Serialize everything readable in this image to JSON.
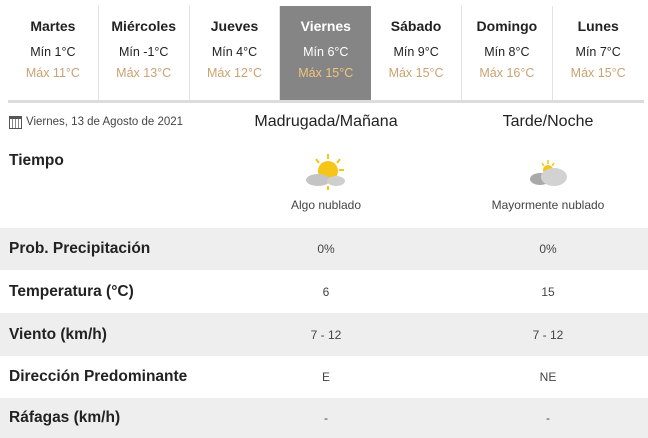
{
  "days": [
    {
      "name": "Martes",
      "min": "Mín 1°C",
      "max": "Máx 11°C",
      "selected": false
    },
    {
      "name": "Miércoles",
      "min": "Mín -1°C",
      "max": "Máx 13°C",
      "selected": false
    },
    {
      "name": "Jueves",
      "min": "Mín 4°C",
      "max": "Máx 12°C",
      "selected": false
    },
    {
      "name": "Viernes",
      "min": "Mín 6°C",
      "max": "Máx 15°C",
      "selected": true
    },
    {
      "name": "Sábado",
      "min": "Mín 9°C",
      "max": "Máx 15°C",
      "selected": false
    },
    {
      "name": "Domingo",
      "min": "Mín 8°C",
      "max": "Máx 16°C",
      "selected": false
    },
    {
      "name": "Lunes",
      "min": "Mín 7°C",
      "max": "Máx 15°C",
      "selected": false
    }
  ],
  "colors": {
    "selected_bg": "#858585",
    "max_temp": "#c9a272",
    "alt_row": "#eeeeee"
  },
  "detail": {
    "date": "Viernes, 13 de Agosto de 2021",
    "date_icon": "calendar-icon",
    "col1": "Madrugada/Mañana",
    "col2": "Tarde/Noche",
    "tiempo": {
      "label": "Tiempo",
      "c1": "Algo nublado",
      "c1_icon": "partly-cloudy-icon",
      "c2": "Mayormente nublado",
      "c2_icon": "mostly-cloudy-icon"
    },
    "rows": [
      {
        "label": "Prob. Precipitación",
        "c1": "0%",
        "c2": "0%"
      },
      {
        "label": "Temperatura (°C)",
        "c1": "6",
        "c2": "15"
      },
      {
        "label": "Viento (km/h)",
        "c1": "7 - 12",
        "c2": "7 - 12"
      },
      {
        "label": "Dirección Predominante",
        "c1": "E",
        "c2": "NE"
      },
      {
        "label": "Ráfagas (km/h)",
        "c1": "-",
        "c2": "-"
      }
    ]
  }
}
